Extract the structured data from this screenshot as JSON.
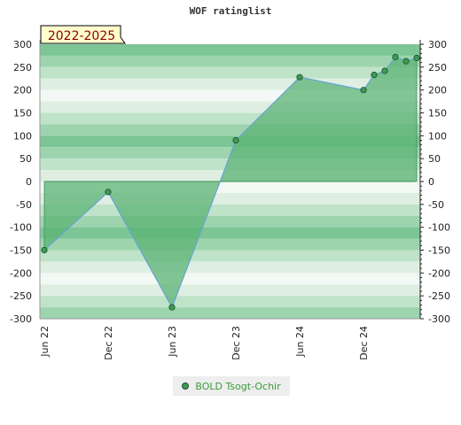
{
  "chart_data": {
    "type": "area",
    "title": "WOF ratinglist",
    "badge": "2022-2025",
    "x": [
      "2022-06",
      "2022-12",
      "2023-06",
      "2023-12",
      "2024-06",
      "2024-12",
      "2025-01",
      "2025-02",
      "2025-03",
      "2025-04",
      "2025-05"
    ],
    "series": [
      {
        "name": "BOLD Tsogt-Ochir",
        "values": [
          -150,
          -23,
          -275,
          90,
          228,
          200,
          233,
          242,
          272,
          263,
          270
        ]
      }
    ],
    "xticks": [
      "Jun 22",
      "Dec 22",
      "Jun 23",
      "Dec 23",
      "Jun 24",
      "Dec 24"
    ],
    "yticks": [
      300,
      250,
      200,
      150,
      100,
      50,
      0,
      -50,
      -100,
      -150,
      -200,
      -250,
      -300
    ],
    "ylim": [
      -300,
      300
    ],
    "y2": true,
    "legend": "bottom-center",
    "grid": "horizontal bands",
    "colors": {
      "band_dark": "#7cc595",
      "band_light": "#e9f5ec",
      "fill": "#5bb374",
      "line": "#6aa4d4",
      "marker": "#3d9a55",
      "badge_bg": "#ffffcc"
    }
  }
}
